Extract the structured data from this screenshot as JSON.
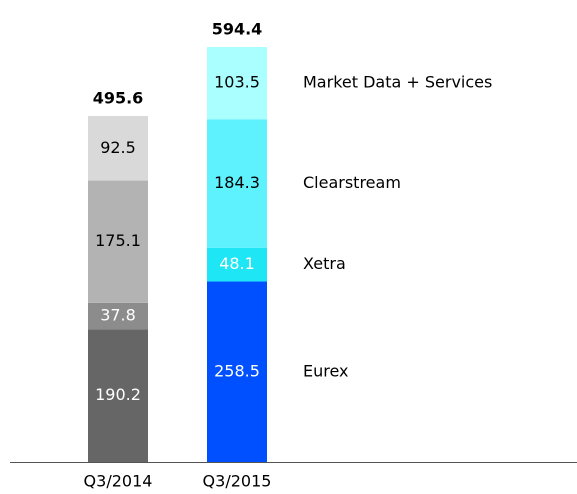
{
  "chart_data": {
    "type": "stacked-bar",
    "categories": [
      "Q3/2014",
      "Q3/2015"
    ],
    "series": [
      {
        "name": "Eurex",
        "colors": [
          "#666666",
          "#0050ff"
        ],
        "values": [
          190.2,
          258.5
        ]
      },
      {
        "name": "Xetra",
        "colors": [
          "#8c8c8c",
          "#1ee6f5"
        ],
        "values": [
          37.8,
          48.1
        ]
      },
      {
        "name": "Clearstream",
        "colors": [
          "#b3b3b3",
          "#5ef2ff"
        ],
        "values": [
          175.1,
          184.3
        ]
      },
      {
        "name": "Market Data + Services",
        "colors": [
          "#d9d9d9",
          "#aaffff"
        ],
        "values": [
          92.5,
          103.5
        ]
      }
    ],
    "totals": [
      495.6,
      594.4
    ]
  }
}
